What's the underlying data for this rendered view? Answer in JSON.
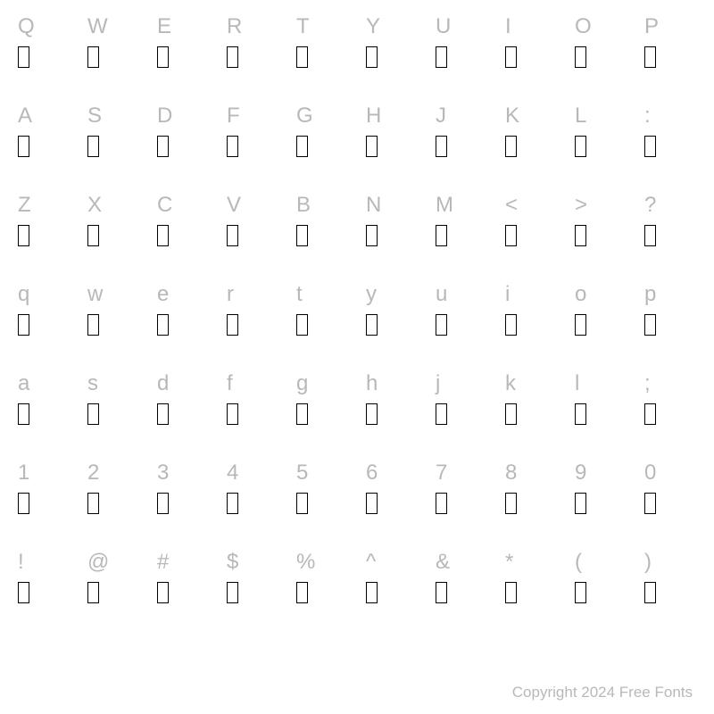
{
  "rows": [
    [
      "Q",
      "W",
      "E",
      "R",
      "T",
      "Y",
      "U",
      "I",
      "O",
      "P"
    ],
    [
      "A",
      "S",
      "D",
      "F",
      "G",
      "H",
      "J",
      "K",
      "L",
      ":"
    ],
    [
      "Z",
      "X",
      "C",
      "V",
      "B",
      "N",
      "M",
      "<",
      ">",
      "?"
    ],
    [
      "q",
      "w",
      "e",
      "r",
      "t",
      "y",
      "u",
      "i",
      "o",
      "p"
    ],
    [
      "a",
      "s",
      "d",
      "f",
      "g",
      "h",
      "j",
      "k",
      "l",
      ";"
    ],
    [
      "1",
      "2",
      "3",
      "4",
      "5",
      "6",
      "7",
      "8",
      "9",
      "0"
    ],
    [
      "!",
      "@",
      "#",
      "$",
      "%",
      "^",
      "&",
      "*",
      "(",
      ")"
    ]
  ],
  "footer": "Copyright 2024 Free Fonts",
  "styling": {
    "background_color": "#ffffff",
    "label_color": "#b8b8b8",
    "label_fontsize": 24,
    "glyph_border_color": "#000000",
    "glyph_width": 13,
    "glyph_height": 24,
    "footer_color": "#b8b8b8",
    "footer_fontsize": 17,
    "columns": 10,
    "row_gap": 42
  }
}
